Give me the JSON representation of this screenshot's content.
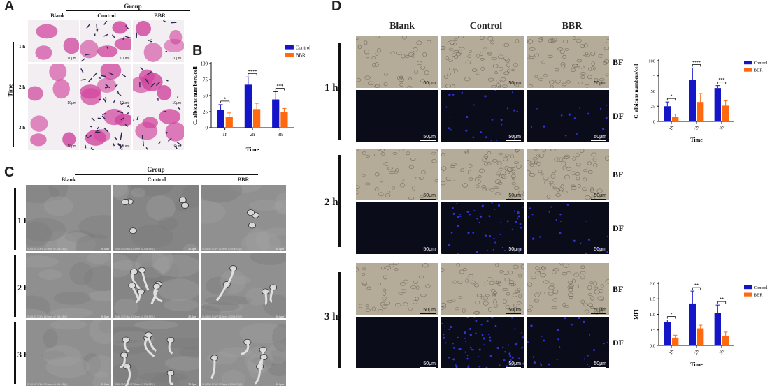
{
  "panels": {
    "A": "A",
    "B": "B",
    "C": "C",
    "D": "D"
  },
  "panelA": {
    "group_label": "Group",
    "groups": [
      "Blank",
      "Control",
      "BBR"
    ],
    "time_axis_label": "Time",
    "rows": [
      "1 h",
      "2 h",
      "3 h"
    ],
    "scale": "10μm"
  },
  "panelC": {
    "group_label": "Group",
    "groups": [
      "Blank",
      "Control",
      "BBR"
    ],
    "rows": [
      "1 h",
      "2 h",
      "3 h"
    ],
    "scale": "20.0μm",
    "sem_caption": "SU8100 3.0kV 12.9mm x2.00k SE(L)"
  },
  "panelD": {
    "groups": [
      "Blank",
      "Control",
      "BBR"
    ],
    "rows": [
      "1 h",
      "2 h",
      "3 h"
    ],
    "channels": [
      "BF",
      "DF"
    ],
    "scales": [
      "60μm",
      "50μm"
    ]
  },
  "colors": {
    "control": "#1515c8",
    "bbr": "#ff6a10",
    "he_stain": "#d1479f",
    "df_blue": "#2d34d8"
  },
  "chart_data": [
    {
      "id": "B",
      "type": "bar",
      "xlabel": "Time",
      "ylabel": "C. albicans numbers/cell",
      "categories": [
        "1h",
        "2h",
        "3h"
      ],
      "series": [
        {
          "name": "Control",
          "values": [
            28,
            67,
            44
          ],
          "errors": [
            8,
            12,
            12
          ]
        },
        {
          "name": "BBR",
          "values": [
            17,
            29,
            25
          ],
          "errors": [
            6,
            9,
            5
          ]
        }
      ],
      "ylim": [
        0,
        100
      ],
      "yticks": [
        0,
        25,
        50,
        75,
        100
      ],
      "significance": [
        "*",
        "****",
        "***"
      ],
      "legend": "top-right"
    },
    {
      "id": "D-top",
      "type": "bar",
      "xlabel": "Time",
      "ylabel": "C. albicans numbers/cell",
      "categories": [
        "1h",
        "2h",
        "3h"
      ],
      "series": [
        {
          "name": "Control",
          "values": [
            25,
            68,
            55
          ],
          "errors": [
            7,
            20,
            4
          ]
        },
        {
          "name": "BBR",
          "values": [
            8,
            32,
            26
          ],
          "errors": [
            4,
            14,
            8
          ]
        }
      ],
      "ylim": [
        0,
        100
      ],
      "yticks": [
        0,
        25,
        50,
        75,
        100
      ],
      "significance": [
        "*",
        "****",
        "***"
      ],
      "legend": "top-right"
    },
    {
      "id": "D-bottom",
      "type": "bar",
      "xlabel": "Time",
      "ylabel": "MFI",
      "categories": [
        "1h",
        "2h",
        "3h"
      ],
      "series": [
        {
          "name": "Control",
          "values": [
            0.75,
            1.35,
            1.05
          ],
          "errors": [
            0.07,
            0.4,
            0.25
          ]
        },
        {
          "name": "BBR",
          "values": [
            0.25,
            0.55,
            0.3
          ],
          "errors": [
            0.08,
            0.1,
            0.13
          ]
        }
      ],
      "ylim": [
        0,
        2.0
      ],
      "yticks": [
        0.0,
        0.5,
        1.0,
        1.5,
        2.0
      ],
      "significance": [
        "*",
        "**",
        "**"
      ],
      "legend": "top-right"
    }
  ]
}
